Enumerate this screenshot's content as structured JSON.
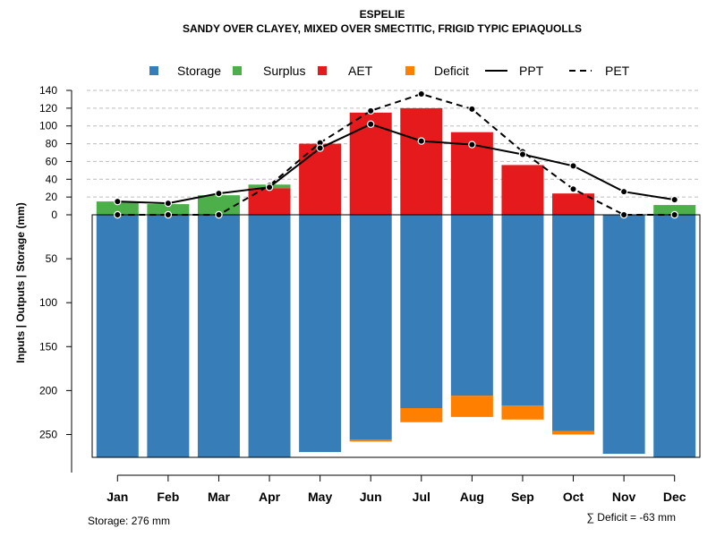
{
  "chart_data": {
    "type": "bar",
    "title": "ESPELIE",
    "subtitle": "SANDY OVER CLAYEY, MIXED OVER SMECTITIC, FRIGID TYPIC EPIAQUOLLS",
    "ylabel": "Inputs | Outputs | Storage     (mm)",
    "categories": [
      "Jan",
      "Feb",
      "Mar",
      "Apr",
      "May",
      "Jun",
      "Jul",
      "Aug",
      "Sep",
      "Oct",
      "Nov",
      "Dec"
    ],
    "upper_ylim": [
      0,
      140
    ],
    "upper_ticks": [
      "0",
      "20",
      "40",
      "60",
      "80",
      "100",
      "120",
      "140"
    ],
    "lower_ylim": [
      0,
      276
    ],
    "lower_ticks": [
      "50",
      "100",
      "150",
      "200",
      "250"
    ],
    "series": [
      {
        "name": "Storage",
        "color": "#377EB8",
        "values": [
          276,
          276,
          276,
          276,
          270,
          256,
          220,
          206,
          217,
          246,
          272,
          276
        ]
      },
      {
        "name": "Surplus",
        "color": "#4DAF4A",
        "values": [
          15,
          12,
          22,
          4,
          0,
          0,
          0,
          0,
          0,
          0,
          0,
          11
        ]
      },
      {
        "name": "AET",
        "color": "#E41A1C",
        "values": [
          0,
          0,
          0,
          30,
          80,
          115,
          120,
          93,
          56,
          24,
          0,
          0
        ]
      },
      {
        "name": "Deficit",
        "color": "#FF7F00",
        "values": [
          0,
          0,
          0,
          0,
          0,
          2,
          16,
          24,
          16,
          4,
          0,
          0
        ]
      },
      {
        "name": "PPT",
        "color": "#000000",
        "style": "solid",
        "values": [
          15,
          13,
          24,
          31,
          75,
          102,
          83,
          79,
          68,
          55,
          26,
          17
        ]
      },
      {
        "name": "PET",
        "color": "#000000",
        "style": "dashed",
        "values": [
          0,
          0,
          0,
          33,
          81,
          117,
          136,
          119,
          71,
          29,
          0,
          0
        ]
      }
    ]
  },
  "notes": {
    "storage": "Storage: 276 mm",
    "deficit": "∑ Deficit = -63 mm"
  }
}
